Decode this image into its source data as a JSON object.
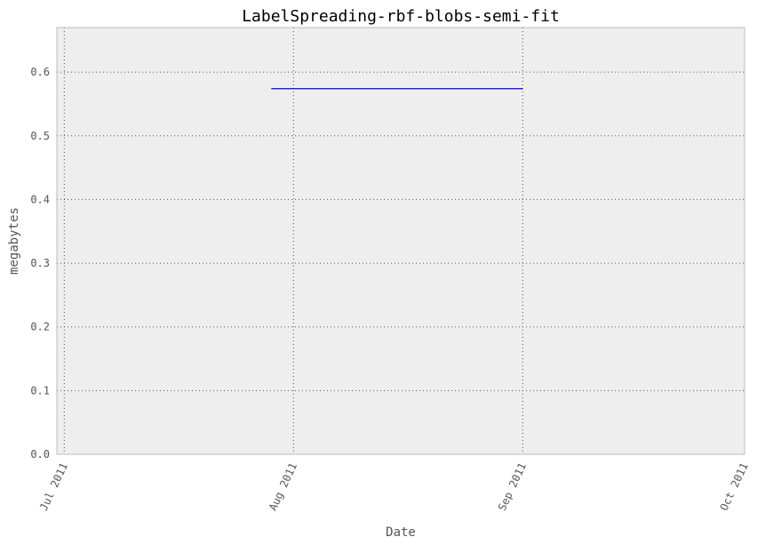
{
  "chart_data": {
    "type": "line",
    "title": "LabelSpreading-rbf-blobs-semi-fit",
    "xlabel": "Date",
    "ylabel": "megabytes",
    "x_ticks": [
      "Jul 2011",
      "Aug 2011",
      "Sep 2011",
      "Oct 2011"
    ],
    "x_tick_dates": [
      "2011-07-01",
      "2011-08-01",
      "2011-09-01",
      "2011-10-01"
    ],
    "xlim": [
      "2011-06-30",
      "2011-10-01"
    ],
    "y_ticks": [
      0.0,
      0.1,
      0.2,
      0.3,
      0.4,
      0.5,
      0.6
    ],
    "y_tick_labels": [
      "0.0",
      "0.1",
      "0.2",
      "0.3",
      "0.4",
      "0.5",
      "0.6"
    ],
    "ylim": [
      0,
      0.67
    ],
    "grid": true,
    "series": [
      {
        "x": [
          "2011-07-29",
          "2011-09-01"
        ],
        "y": [
          0.574,
          0.574
        ],
        "color": "#0000ff"
      }
    ],
    "colors": {
      "plot_background": "#eeeeee",
      "axes_border": "#bcbcbc"
    }
  }
}
